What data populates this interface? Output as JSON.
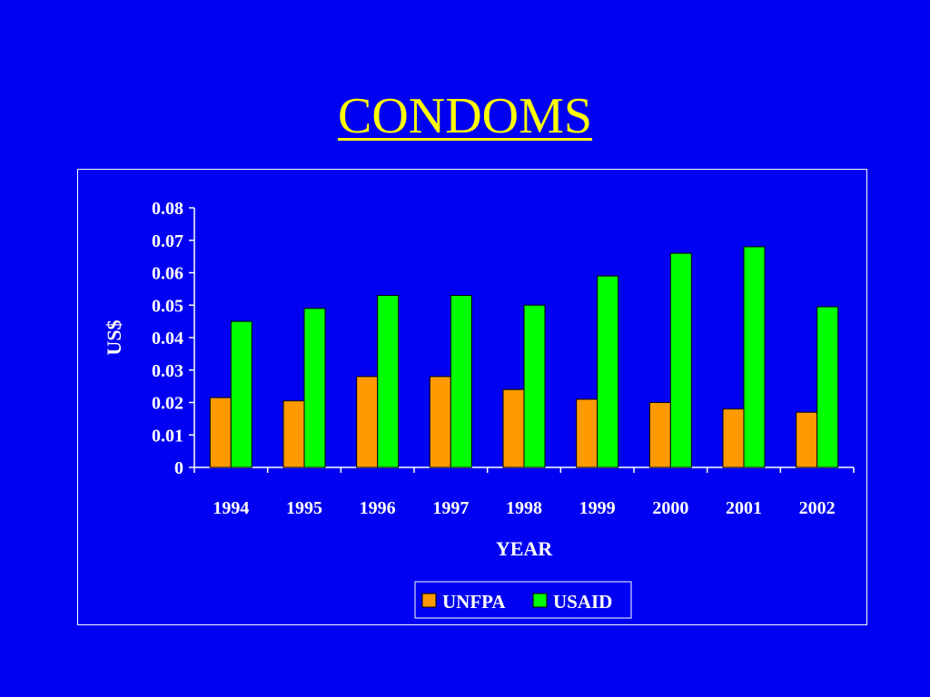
{
  "slide": {
    "title": "CONDOMS"
  },
  "chart_data": {
    "type": "bar",
    "title": "",
    "xlabel": "YEAR",
    "ylabel": "US$",
    "categories": [
      "1994",
      "1995",
      "1996",
      "1997",
      "1998",
      "1999",
      "2000",
      "2001",
      "2002"
    ],
    "series": [
      {
        "name": "UNFPA",
        "color": "#ff9900",
        "values": [
          0.0215,
          0.0205,
          0.028,
          0.028,
          0.024,
          0.021,
          0.02,
          0.018,
          0.017
        ]
      },
      {
        "name": "USAID",
        "color": "#00ff00",
        "values": [
          0.045,
          0.049,
          0.053,
          0.053,
          0.05,
          0.059,
          0.066,
          0.068,
          0.0495
        ]
      }
    ],
    "ylim": [
      0,
      0.08
    ],
    "yticks": [
      "0",
      "0.01",
      "0.02",
      "0.03",
      "0.04",
      "0.05",
      "0.06",
      "0.07",
      "0.08"
    ],
    "grid": false,
    "legend_position": "bottom"
  }
}
